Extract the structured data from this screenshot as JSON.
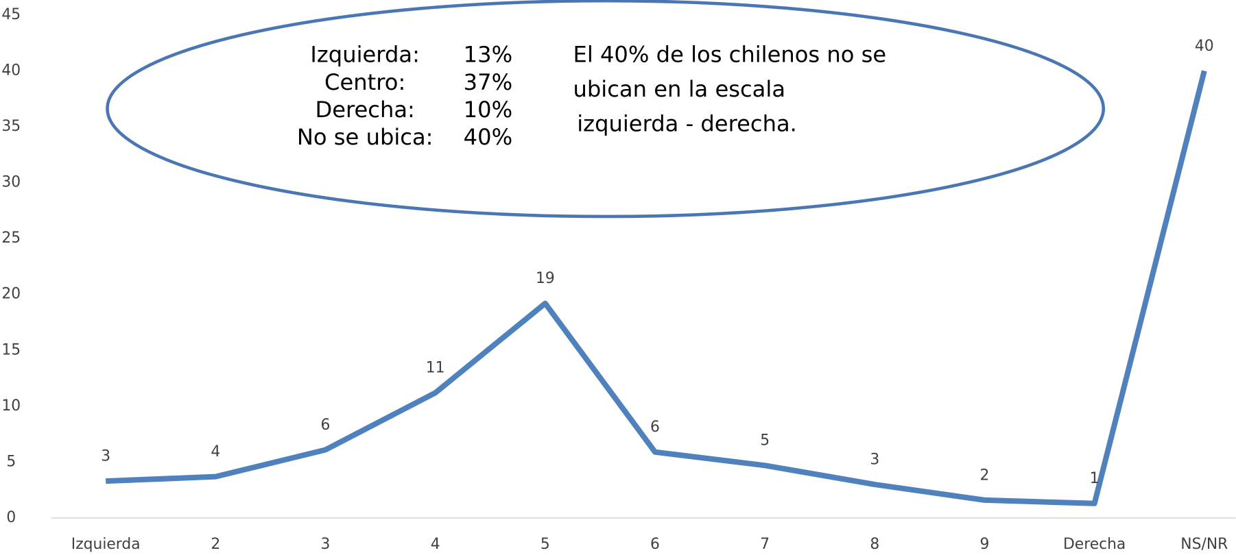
{
  "chart_data": {
    "type": "line",
    "categories": [
      "Izquierda",
      "2",
      "3",
      "4",
      "5",
      "6",
      "7",
      "8",
      "9",
      "Derecha",
      "NS/NR"
    ],
    "values": [
      3.3,
      3.7,
      6.1,
      11.2,
      19.2,
      5.9,
      4.7,
      3.0,
      1.6,
      1.3,
      40
    ],
    "value_labels": [
      "3",
      "4",
      "6",
      "11",
      "19",
      "6",
      "5",
      "3",
      "2",
      "1",
      "40"
    ],
    "color": "#4f81bd",
    "ylim": [
      0,
      45
    ],
    "yticks": [
      0,
      5,
      10,
      15,
      20,
      25,
      30,
      35,
      40,
      45
    ],
    "grid": false,
    "annotation": {
      "rows": [
        [
          "Izquierda:",
          "13%"
        ],
        [
          "Centro:",
          "37%"
        ],
        [
          "Derecha:",
          "10%"
        ],
        [
          "No se ubica:",
          "40%"
        ]
      ],
      "note": [
        "El 40% de los chilenos no se",
        "ubican en la escala",
        "izquierda - derecha."
      ]
    }
  }
}
